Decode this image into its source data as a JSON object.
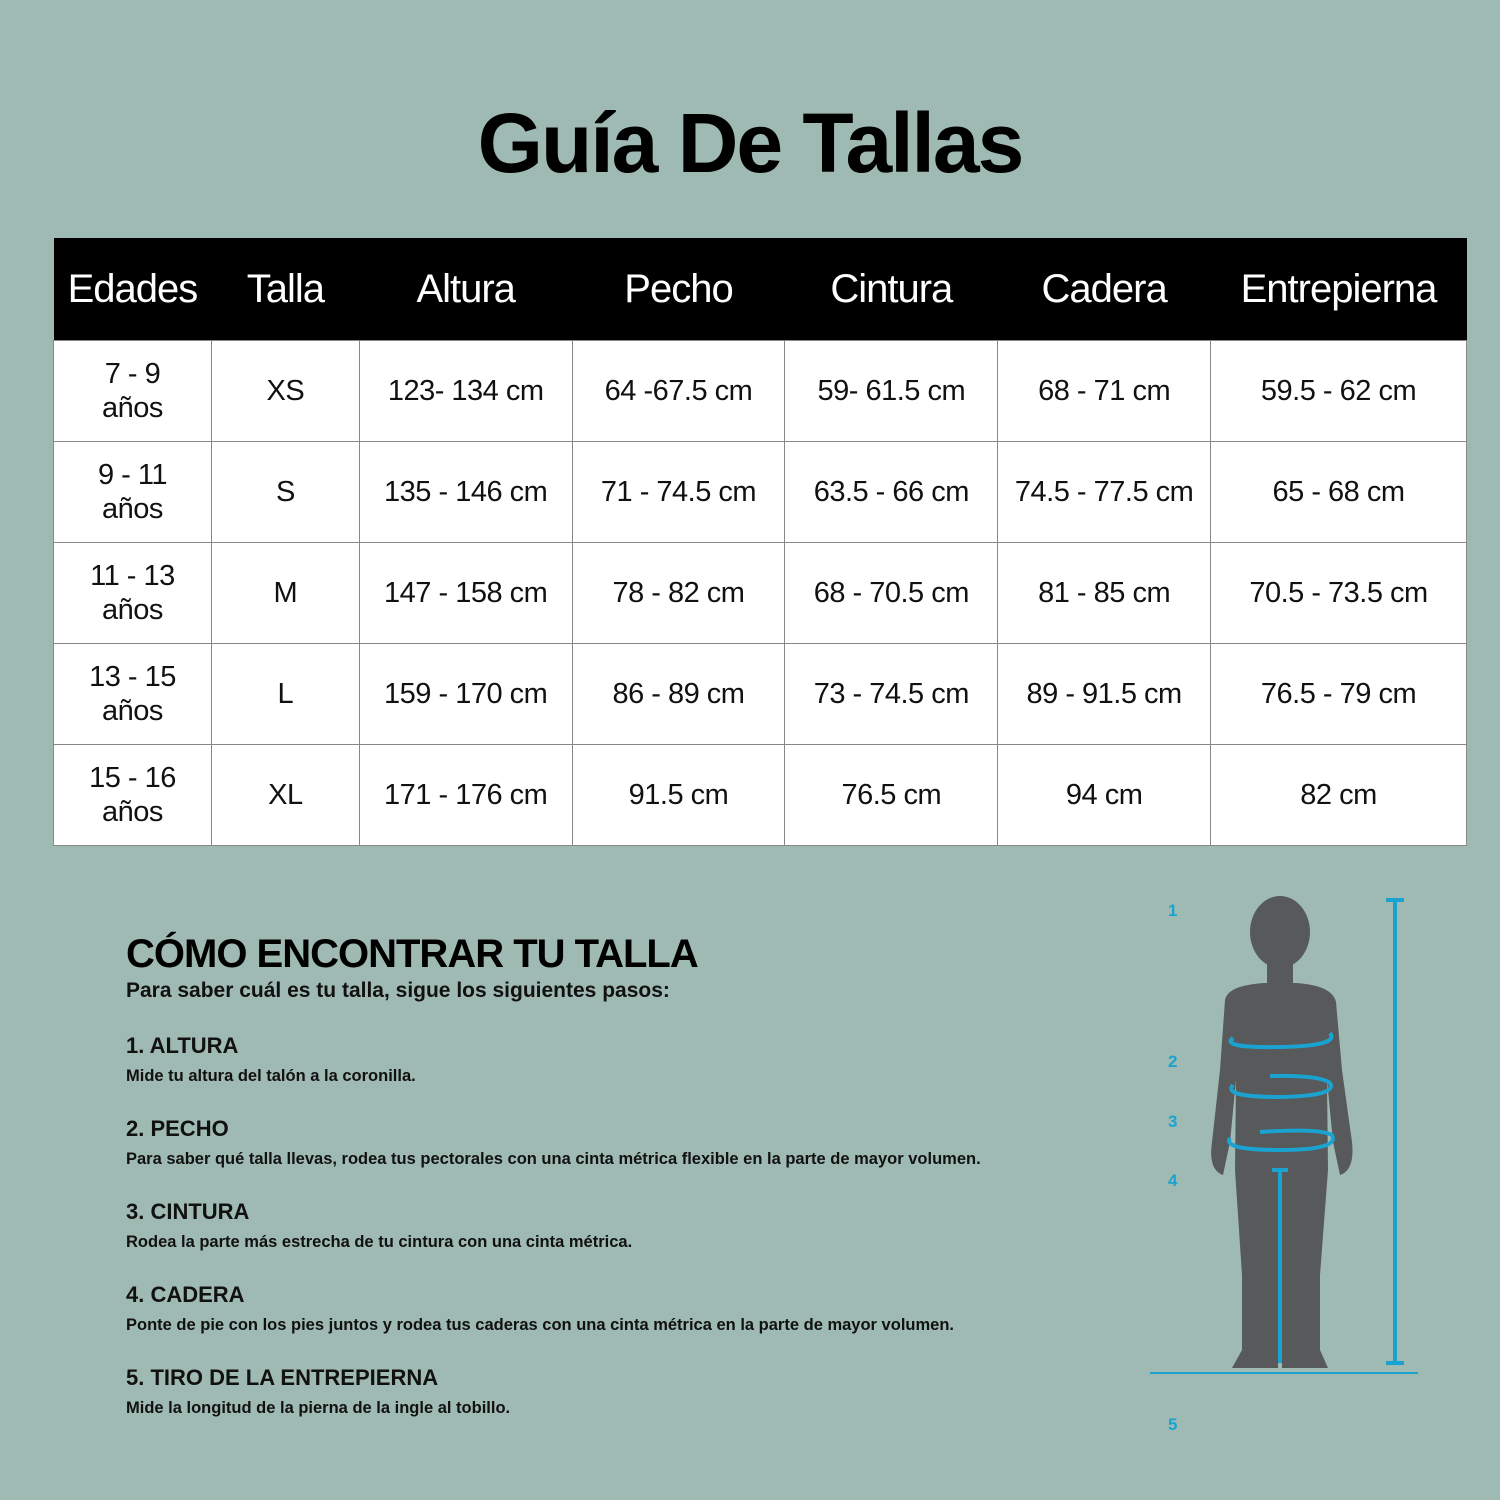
{
  "title": "Guía De Tallas",
  "table": {
    "headers": [
      "Edades",
      "Talla",
      "Altura",
      "Pecho",
      "Cintura",
      "Cadera",
      "Entrepierna"
    ],
    "rows": [
      {
        "age_range": "7 - 9",
        "age_unit": "años",
        "size": "XS",
        "altura": "123- 134 cm",
        "pecho": "64 -67.5 cm",
        "cintura": "59- 61.5 cm",
        "cadera": "68 - 71 cm",
        "entrepierna": "59.5 - 62 cm"
      },
      {
        "age_range": "9 - 11",
        "age_unit": "años",
        "size": "S",
        "altura": "135 - 146 cm",
        "pecho": "71 - 74.5 cm",
        "cintura": "63.5 - 66 cm",
        "cadera": "74.5 - 77.5 cm",
        "entrepierna": "65 - 68 cm"
      },
      {
        "age_range": "11 - 13",
        "age_unit": "años",
        "size": "M",
        "altura": "147 - 158 cm",
        "pecho": "78 - 82 cm",
        "cintura": "68 - 70.5 cm",
        "cadera": "81 - 85 cm",
        "entrepierna": "70.5 - 73.5 cm"
      },
      {
        "age_range": "13 - 15",
        "age_unit": "años",
        "size": "L",
        "altura": "159 - 170 cm",
        "pecho": "86 - 89 cm",
        "cintura": "73 - 74.5 cm",
        "cadera": "89 - 91.5 cm",
        "entrepierna": "76.5 - 79   cm"
      },
      {
        "age_range": "15 - 16",
        "age_unit": "años",
        "size": "XL",
        "altura": "171 - 176 cm",
        "pecho": "91.5 cm",
        "cintura": "76.5 cm",
        "cadera": "94 cm",
        "entrepierna": "82 cm"
      }
    ]
  },
  "how_to": {
    "heading": "CÓMO ENCONTRAR TU TALLA",
    "subheading": "Para saber cuál es tu talla, sigue los siguientes pasos:",
    "steps": [
      {
        "title": "1. ALTURA",
        "text": "Mide tu altura del talón a la coronilla."
      },
      {
        "title": "2. PECHO",
        "text": "Para saber qué talla llevas, rodea tus pectorales con una cinta métrica flexible en la parte de mayor volumen."
      },
      {
        "title": "3. CINTURA",
        "text": "Rodea la parte más estrecha de tu cintura con una cinta métrica."
      },
      {
        "title": "4. CADERA",
        "text": "Ponte de pie con los pies juntos y rodea tus caderas con una cinta métrica en la parte de mayor volumen."
      },
      {
        "title": "5. TIRO DE LA ENTREPIERNA",
        "text": "Mide la longitud de la pierna de la ingle al tobillo."
      }
    ]
  },
  "figure": {
    "markers": [
      "1",
      "2",
      "3",
      "4",
      "5"
    ],
    "colors": {
      "background": "#9fbab3",
      "measure": "#1aa3d0",
      "silhouette": "#58595b",
      "header": "#000000"
    }
  }
}
